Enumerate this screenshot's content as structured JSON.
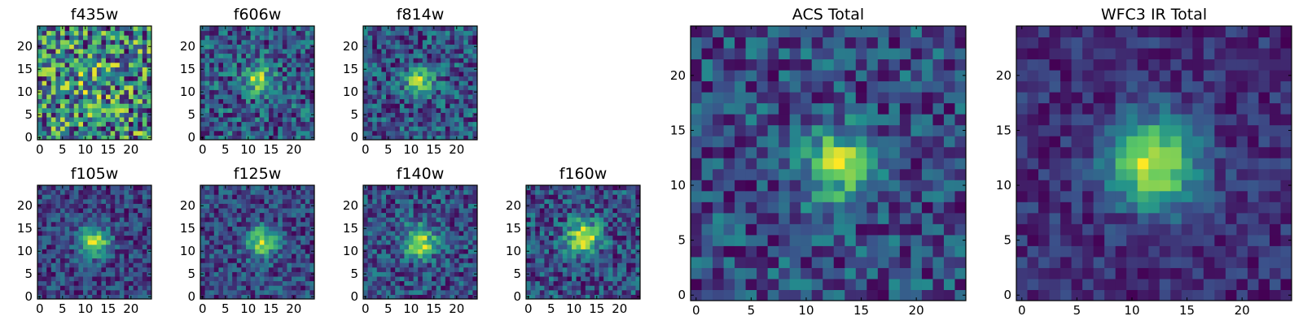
{
  "chart_data": {
    "type": "heatmap",
    "colormap": "viridis",
    "colormap_stops": [
      "#440154",
      "#3b528b",
      "#21908d",
      "#5dc963",
      "#fde725"
    ],
    "grid_size": 25,
    "panels": [
      {
        "id": "f435w",
        "title": "f435w",
        "xticks": [
          "0",
          "5",
          "10",
          "15",
          "20"
        ],
        "yticks": [
          "0",
          "5",
          "10",
          "15",
          "20"
        ],
        "source": {
          "x": 12,
          "y": 12,
          "amplitude": 0.12,
          "sigma": 3.0
        },
        "base": 0.6,
        "noise": 0.32
      },
      {
        "id": "f606w",
        "title": "f606w",
        "xticks": [
          "0",
          "5",
          "10",
          "15",
          "20"
        ],
        "yticks": [
          "0",
          "5",
          "10",
          "15",
          "20"
        ],
        "source": {
          "x": 12,
          "y": 13,
          "amplitude": 0.45,
          "sigma": 2.2
        },
        "base": 0.5,
        "noise": 0.25
      },
      {
        "id": "f814w",
        "title": "f814w",
        "xticks": [
          "0",
          "5",
          "10",
          "15",
          "20"
        ],
        "yticks": [
          "0",
          "5",
          "10",
          "15",
          "20"
        ],
        "source": {
          "x": 12,
          "y": 12,
          "amplitude": 0.55,
          "sigma": 2.0
        },
        "base": 0.45,
        "noise": 0.25
      },
      {
        "id": "f105w",
        "title": "f105w",
        "xticks": [
          "0",
          "5",
          "10",
          "15",
          "20"
        ],
        "yticks": [
          "0",
          "5",
          "10",
          "15",
          "20"
        ],
        "source": {
          "x": 12,
          "y": 12,
          "amplitude": 0.6,
          "sigma": 2.3
        },
        "base": 0.4,
        "noise": 0.18
      },
      {
        "id": "f125w",
        "title": "f125w",
        "xticks": [
          "0",
          "5",
          "10",
          "15",
          "20"
        ],
        "yticks": [
          "0",
          "5",
          "10",
          "15",
          "20"
        ],
        "source": {
          "x": 13,
          "y": 12,
          "amplitude": 0.55,
          "sigma": 2.3
        },
        "base": 0.45,
        "noise": 0.18
      },
      {
        "id": "f140w",
        "title": "f140w",
        "xticks": [
          "0",
          "5",
          "10",
          "15",
          "20"
        ],
        "yticks": [
          "0",
          "5",
          "10",
          "15",
          "20"
        ],
        "source": {
          "x": 12,
          "y": 12,
          "amplitude": 0.55,
          "sigma": 2.4
        },
        "base": 0.42,
        "noise": 0.2
      },
      {
        "id": "f160w",
        "title": "f160w",
        "xticks": [
          "0",
          "5",
          "10",
          "15",
          "20"
        ],
        "yticks": [
          "0",
          "5",
          "10",
          "15",
          "20"
        ],
        "source": {
          "x": 12,
          "y": 13,
          "amplitude": 0.6,
          "sigma": 2.4
        },
        "base": 0.4,
        "noise": 0.2
      },
      {
        "id": "acs-total",
        "title": "ACS Total",
        "xticks": [
          "0",
          "5",
          "10",
          "15",
          "20"
        ],
        "yticks": [
          "0",
          "5",
          "10",
          "15",
          "20"
        ],
        "source": {
          "x": 13,
          "y": 12,
          "amplitude": 0.5,
          "sigma": 2.3
        },
        "base": 0.5,
        "noise": 0.2
      },
      {
        "id": "wfc3-ir-total",
        "title": "WFC3 IR Total",
        "xticks": [
          "0",
          "5",
          "10",
          "15",
          "20"
        ],
        "yticks": [
          "0",
          "5",
          "10",
          "15",
          "20"
        ],
        "source": {
          "x": 12,
          "y": 12,
          "amplitude": 0.6,
          "sigma": 2.8
        },
        "base": 0.35,
        "noise": 0.1
      }
    ]
  }
}
